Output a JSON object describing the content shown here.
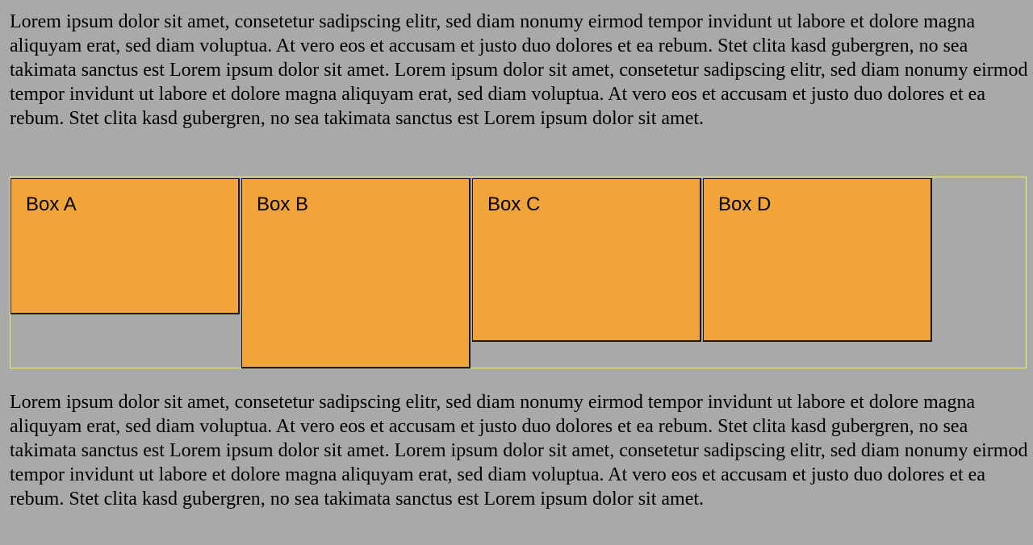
{
  "paragraphs": {
    "top": "Lorem ipsum dolor sit amet, consetetur sadipscing elitr, sed diam nonumy eirmod tempor invidunt ut labore et dolore magna aliquyam erat, sed diam voluptua. At vero eos et accusam et justo duo dolores et ea rebum. Stet clita kasd gubergren, no sea takimata sanctus est Lorem ipsum dolor sit amet. Lorem ipsum dolor sit amet, consetetur sadipscing elitr, sed diam nonumy eirmod tempor invidunt ut labore et dolore magna aliquyam erat, sed diam voluptua. At vero eos et accusam et justo duo dolores et ea rebum. Stet clita kasd gubergren, no sea takimata sanctus est Lorem ipsum dolor sit amet.",
    "bottom": "Lorem ipsum dolor sit amet, consetetur sadipscing elitr, sed diam nonumy eirmod tempor invidunt ut labore et dolore magna aliquyam erat, sed diam voluptua. At vero eos et accusam et justo duo dolores et ea rebum. Stet clita kasd gubergren, no sea takimata sanctus est Lorem ipsum dolor sit amet. Lorem ipsum dolor sit amet, consetetur sadipscing elitr, sed diam nonumy eirmod tempor invidunt ut labore et dolore magna aliquyam erat, sed diam voluptua. At vero eos et accusam et justo duo dolores et ea rebum. Stet clita kasd gubergren, no sea takimata sanctus est Lorem ipsum dolor sit amet."
  },
  "boxes": [
    {
      "label": "Box A"
    },
    {
      "label": "Box B"
    },
    {
      "label": "Box C"
    },
    {
      "label": "Box D"
    }
  ],
  "colors": {
    "page_background": "#a9a9a9",
    "box_fill": "#f0a43a",
    "container_border": "#f2f26a",
    "box_border": "#1a1a1a"
  }
}
